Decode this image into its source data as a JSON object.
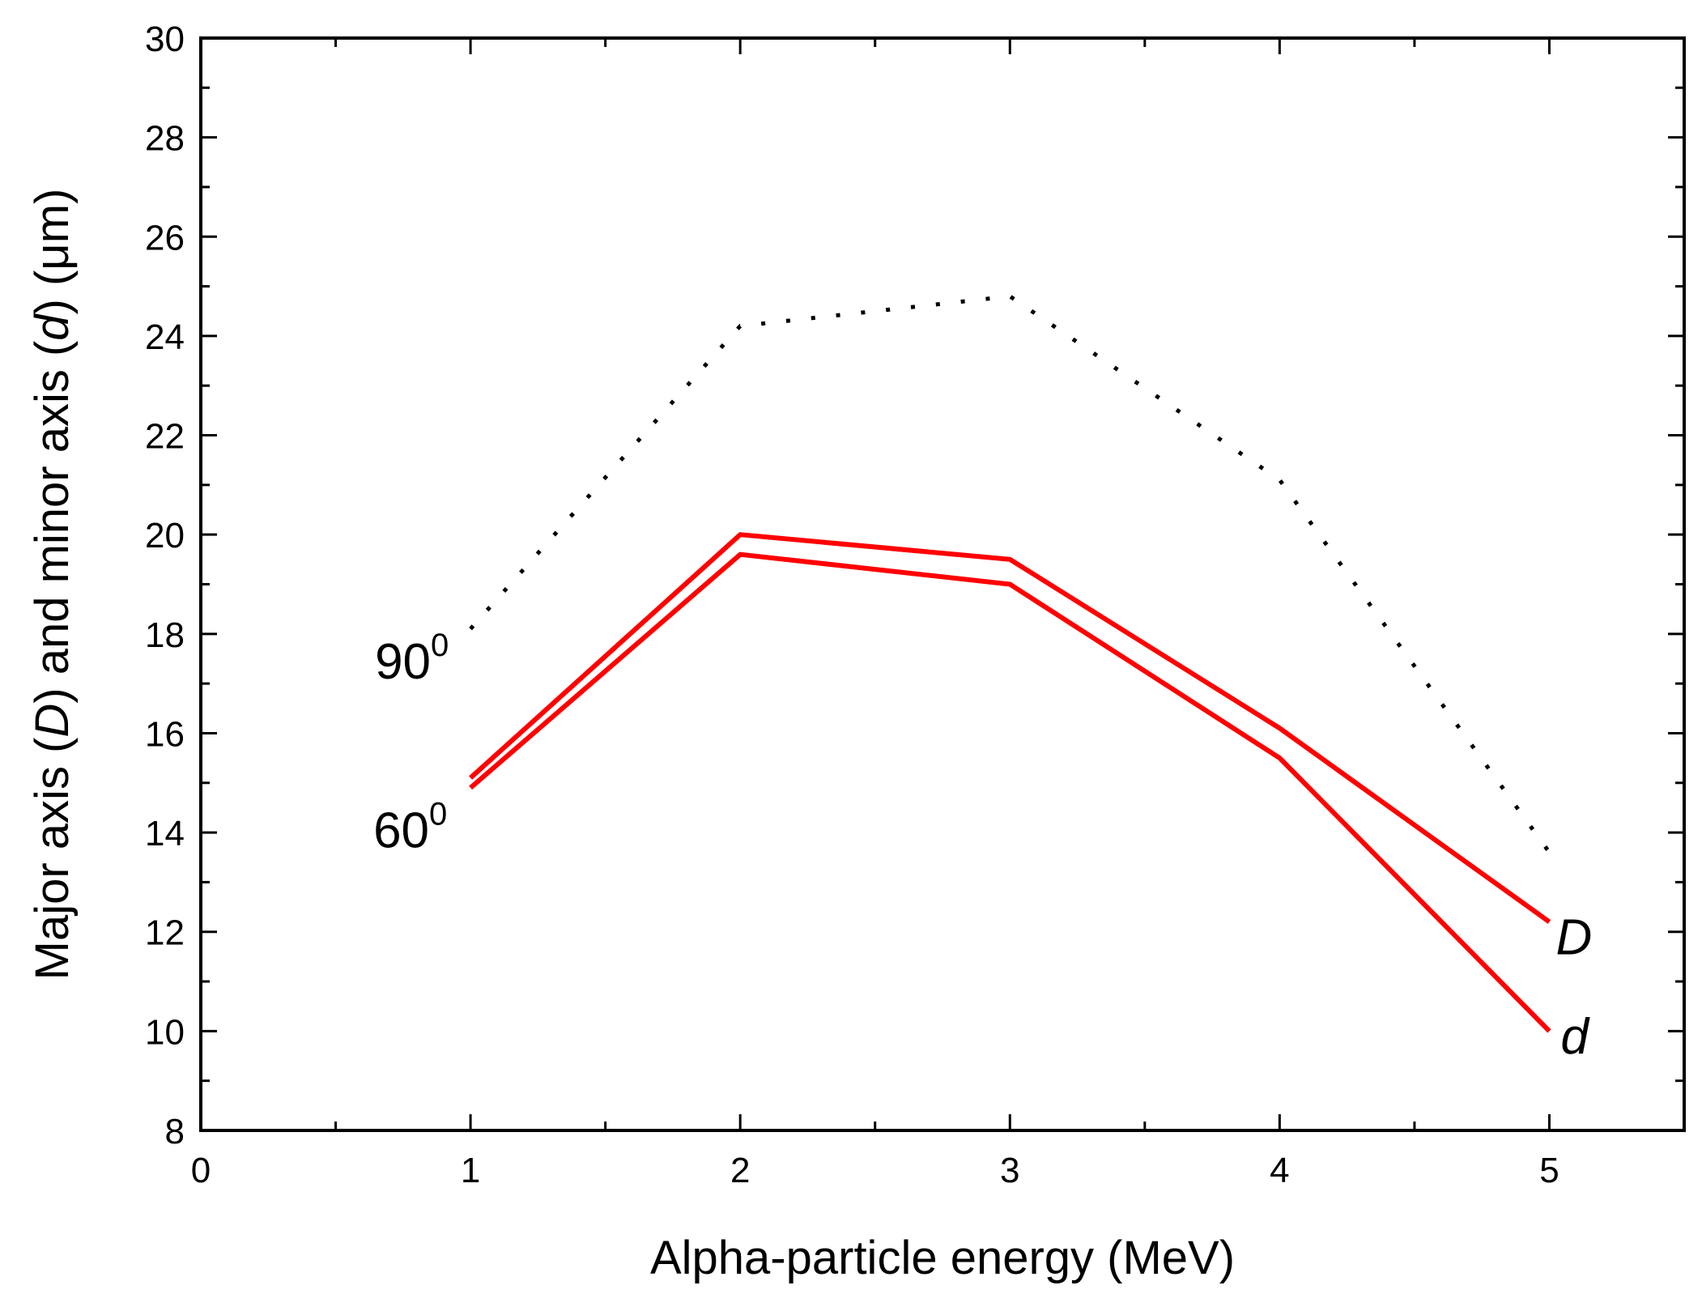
{
  "chart_data": {
    "type": "line",
    "xlabel": "Alpha-particle energy (MeV)",
    "ylabel_parts": [
      "Major axis (",
      "D",
      ") and minor axis (",
      "d",
      ") (μm)"
    ],
    "xlim": [
      0,
      5.5
    ],
    "ylim": [
      8,
      30
    ],
    "xticks": [
      0,
      1,
      2,
      3,
      4,
      5
    ],
    "yticks": [
      8,
      10,
      12,
      14,
      16,
      18,
      20,
      22,
      24,
      26,
      28,
      30
    ],
    "grid": false,
    "series": [
      {
        "key": "D_90",
        "style": "dotted",
        "color": "#000000",
        "x": [
          1,
          2,
          3,
          4,
          5
        ],
        "y": [
          18.1,
          24.2,
          24.8,
          21.1,
          13.6
        ]
      },
      {
        "key": "D_60",
        "style": "solid",
        "color": "#ff0000",
        "x": [
          1,
          2,
          3,
          4,
          5
        ],
        "y": [
          15.1,
          20.0,
          19.5,
          16.1,
          12.2
        ]
      },
      {
        "key": "d_60",
        "style": "solid",
        "color": "#ff0000",
        "x": [
          1,
          2,
          3,
          4,
          5
        ],
        "y": [
          14.9,
          19.6,
          19.0,
          15.5,
          10.0
        ]
      }
    ],
    "annotations": {
      "angle_90": {
        "base": "90",
        "sup": "0"
      },
      "angle_60": {
        "base": "60",
        "sup": "0"
      },
      "label_D": "D",
      "label_d": "d"
    }
  }
}
